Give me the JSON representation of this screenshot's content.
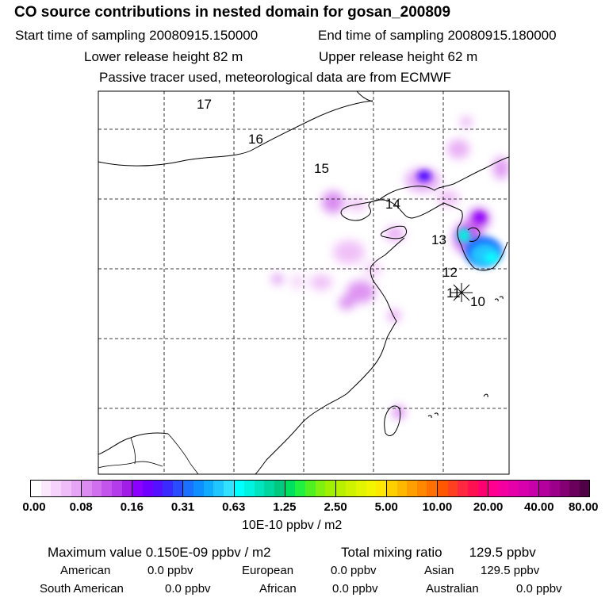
{
  "header": {
    "title": "CO  source contributions in nested domain for gosan_200809",
    "start_label": "Start time of sampling 20080915.150000",
    "end_label": "End time of sampling 20080915.180000",
    "lower_height": "Lower release height   82 m",
    "upper_height": "Upper release height   62 m",
    "tracer_note": "Passive tracer used, meteorological data are from ECMWF"
  },
  "map": {
    "trajectory_labels": [
      "17",
      "16",
      "15",
      "14",
      "13",
      "12",
      "11",
      "10"
    ],
    "receptor_symbol": "sampling-site-marker"
  },
  "colorbar": {
    "tick_labels": [
      "0.00",
      "0.08",
      "0.16",
      "0.31",
      "0.63",
      "1.25",
      "2.50",
      "5.00",
      "10.00",
      "20.00",
      "40.00",
      "80.00"
    ],
    "units": "10E-10 ppbv / m2",
    "colors": [
      "#ffffff",
      "#fbe8fd",
      "#f5d3fa",
      "#efbdf7",
      "#e6a4f4",
      "#dc8cf1",
      "#d070ee",
      "#c455ec",
      "#b53cea",
      "#a21ee8",
      "#8c00ff",
      "#7000ff",
      "#5410ff",
      "#3a2aff",
      "#2a4cff",
      "#1a70ff",
      "#0f8eff",
      "#10aaff",
      "#20c6ff",
      "#30e2ff",
      "#00ffff",
      "#00f2e0",
      "#00e4c0",
      "#00d7a0",
      "#00c980",
      "#00e060",
      "#20f040",
      "#50f020",
      "#80f010",
      "#a0f000",
      "#b8f000",
      "#cef200",
      "#e2f400",
      "#f2f400",
      "#ffe800",
      "#ffd000",
      "#ffb800",
      "#ffa000",
      "#ff8800",
      "#ff7000",
      "#ff5800",
      "#ff4020",
      "#ff2840",
      "#ff1050",
      "#ff0070",
      "#ff0090",
      "#f400a0",
      "#e600a8",
      "#d800ac",
      "#c800ac",
      "#b4009c",
      "#9c008a",
      "#840074",
      "#6a005c",
      "#500044"
    ]
  },
  "stats": {
    "max_value": "Maximum value  0.150E-09 ppbv / m2",
    "total_mixing": "Total mixing ratio",
    "total_value": "129.5 ppbv",
    "row1": [
      {
        "label": "American",
        "value": "0.0 ppbv"
      },
      {
        "label": "European",
        "value": "0.0 ppbv"
      },
      {
        "label": "Asian",
        "value": "129.5 ppbv"
      }
    ],
    "row2": [
      {
        "label": "South American",
        "value": "0.0 ppbv"
      },
      {
        "label": "African",
        "value": "0.0 ppbv"
      },
      {
        "label": "Australian",
        "value": "0.0 ppbv"
      }
    ]
  }
}
